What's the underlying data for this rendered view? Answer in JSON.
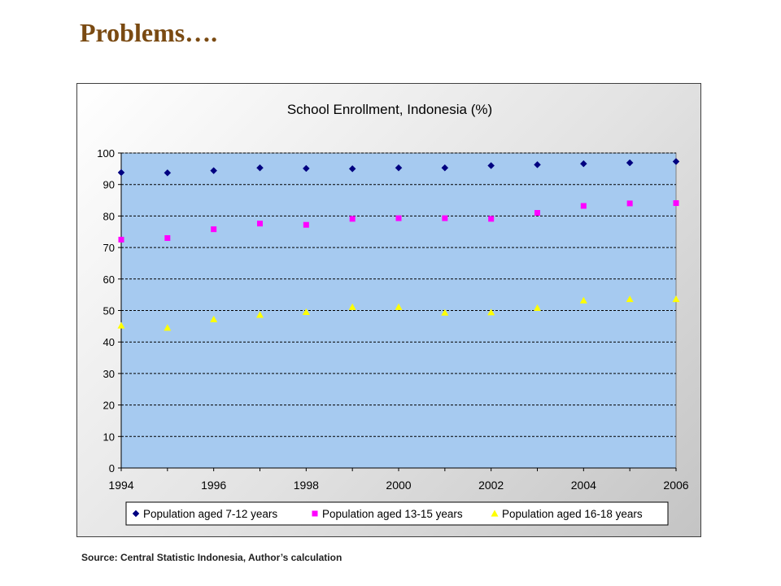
{
  "slide": {
    "title": "Problems….",
    "source_note": "Source: Central  Statistic Indonesia, Author’s calculation"
  },
  "chart_data": {
    "type": "scatter",
    "title": "School Enrollment, Indonesia (%)",
    "xlabel": "",
    "ylabel": "",
    "xlim": [
      1994,
      2006
    ],
    "ylim": [
      0,
      100
    ],
    "x_ticks": [
      "1994",
      "1996",
      "1998",
      "2000",
      "2002",
      "2004",
      "2006"
    ],
    "y_ticks": [
      "0",
      "10",
      "20",
      "30",
      "40",
      "50",
      "60",
      "70",
      "80",
      "90",
      "100"
    ],
    "grid": "horizontal dashed",
    "legend_position": "bottom",
    "plot_background": "#a6caf0",
    "x": [
      1994,
      1995,
      1996,
      1997,
      1998,
      1999,
      2000,
      2001,
      2002,
      2003,
      2004,
      2005,
      2006
    ],
    "series": [
      {
        "name": "Population aged 7-12 years",
        "marker": "diamond",
        "color": "#000080",
        "values": [
          93.8,
          93.7,
          94.4,
          95.3,
          95.1,
          95.0,
          95.3,
          95.3,
          96.0,
          96.3,
          96.6,
          96.9,
          97.3
        ]
      },
      {
        "name": "Population aged 13-15 years",
        "marker": "square",
        "color": "#ff00ff",
        "values": [
          72.5,
          73.0,
          75.8,
          77.6,
          77.2,
          79.1,
          79.3,
          79.3,
          79.1,
          81.0,
          83.2,
          84.0,
          84.1
        ]
      },
      {
        "name": "Population aged 16-18 years",
        "marker": "triangle",
        "color": "#ffff00",
        "values": [
          45.2,
          44.5,
          47.2,
          48.6,
          49.5,
          51.1,
          51.1,
          49.3,
          49.4,
          50.8,
          53.2,
          53.6,
          53.6
        ]
      }
    ]
  }
}
